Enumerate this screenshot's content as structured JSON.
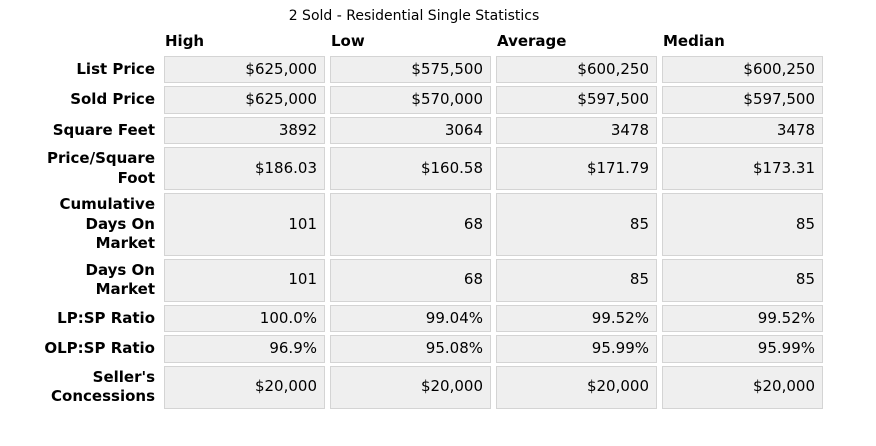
{
  "title": "2 Sold - Residential Single Statistics",
  "table": {
    "columns": [
      "High",
      "Low",
      "Average",
      "Median"
    ],
    "rows": [
      {
        "label": "List Price",
        "values": [
          "$625,000",
          "$575,500",
          "$600,250",
          "$600,250"
        ]
      },
      {
        "label": "Sold Price",
        "values": [
          "$625,000",
          "$570,000",
          "$597,500",
          "$597,500"
        ]
      },
      {
        "label": "Square Feet",
        "values": [
          "3892",
          "3064",
          "3478",
          "3478"
        ]
      },
      {
        "label": "Price/Square\nFoot",
        "values": [
          "$186.03",
          "$160.58",
          "$171.79",
          "$173.31"
        ]
      },
      {
        "label": "Cumulative\nDays On\nMarket",
        "values": [
          "101",
          "68",
          "85",
          "85"
        ]
      },
      {
        "label": "Days On\nMarket",
        "values": [
          "101",
          "68",
          "85",
          "85"
        ]
      },
      {
        "label": "LP:SP Ratio",
        "values": [
          "100.0%",
          "99.04%",
          "99.52%",
          "99.52%"
        ]
      },
      {
        "label": "OLP:SP Ratio",
        "values": [
          "96.9%",
          "95.08%",
          "95.99%",
          "95.99%"
        ]
      },
      {
        "label": "Seller's\nConcessions",
        "values": [
          "$20,000",
          "$20,000",
          "$20,000",
          "$20,000"
        ]
      }
    ]
  },
  "colors": {
    "cell_bg": "#efefef",
    "cell_border": "#d4d4d4",
    "text": "#000000",
    "page_bg": "#ffffff"
  }
}
